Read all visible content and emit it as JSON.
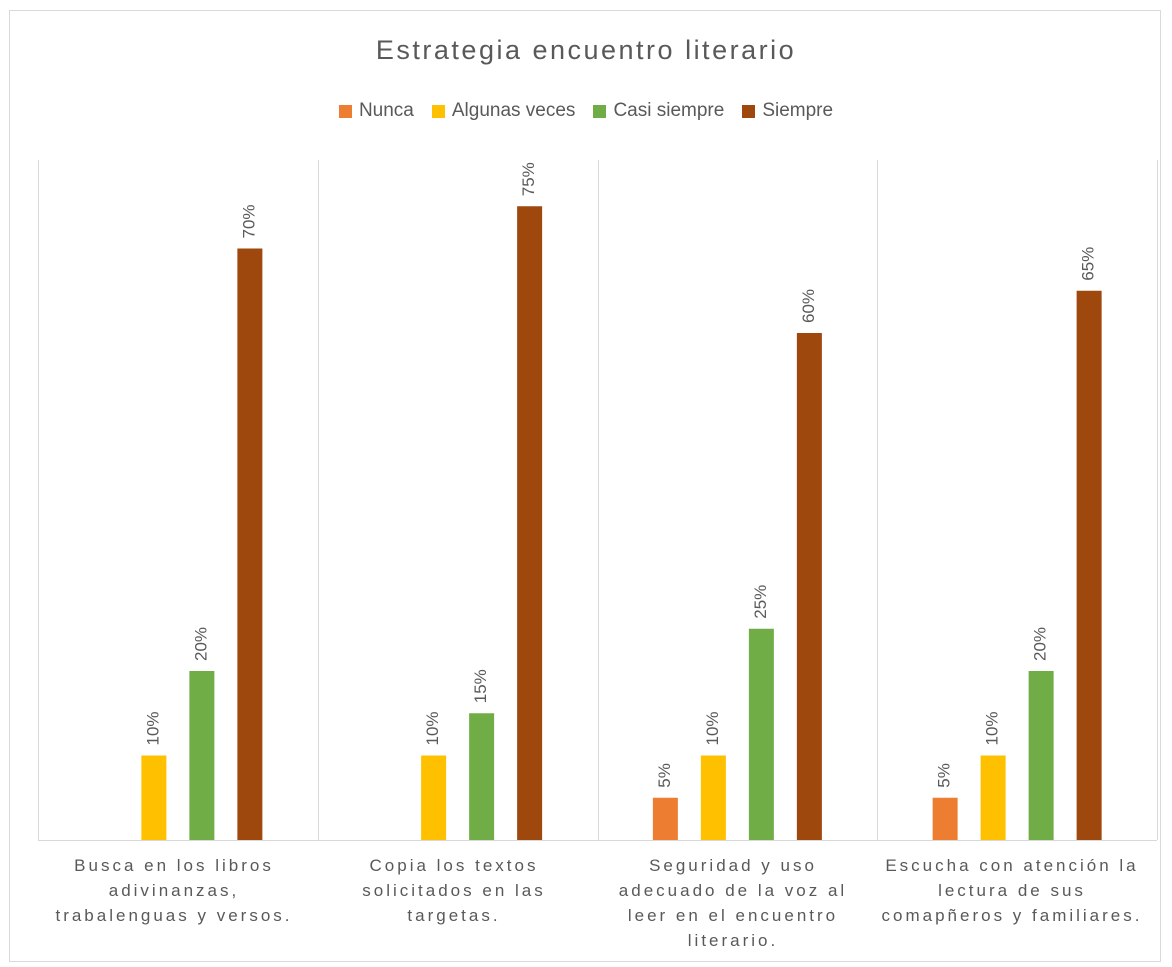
{
  "chart_data": {
    "type": "bar",
    "title": "Estrategia encuentro literario",
    "categories": [
      "Busca en los libros adivinanzas, trabalenguas y versos.",
      "Copia los textos solicitados en las targetas.",
      "Seguridad y uso adecuado de la voz al leer en el encuentro literario.",
      "Escucha con atención la lectura de sus comapñeros y familiares."
    ],
    "series": [
      {
        "name": "Nunca",
        "color": "#ED7D31",
        "values": [
          null,
          null,
          5,
          5
        ],
        "labels": [
          "",
          "",
          "5%",
          "5%"
        ]
      },
      {
        "name": "Algunas veces",
        "color": "#FFC000",
        "values": [
          10,
          10,
          10,
          10
        ],
        "labels": [
          "10%",
          "10%",
          "10%",
          "10%"
        ]
      },
      {
        "name": "Casi siempre",
        "color": "#70AD47",
        "values": [
          20,
          15,
          25,
          20
        ],
        "labels": [
          "20%",
          "15%",
          "25%",
          "20%"
        ]
      },
      {
        "name": "Siempre",
        "color": "#9E480E",
        "values": [
          70,
          75,
          60,
          65
        ],
        "labels": [
          "70%",
          "75%",
          "60%",
          "65%"
        ]
      }
    ],
    "ylim": [
      0,
      80
    ],
    "legend_position": "top",
    "grid": false,
    "xlabel": "",
    "ylabel": ""
  }
}
